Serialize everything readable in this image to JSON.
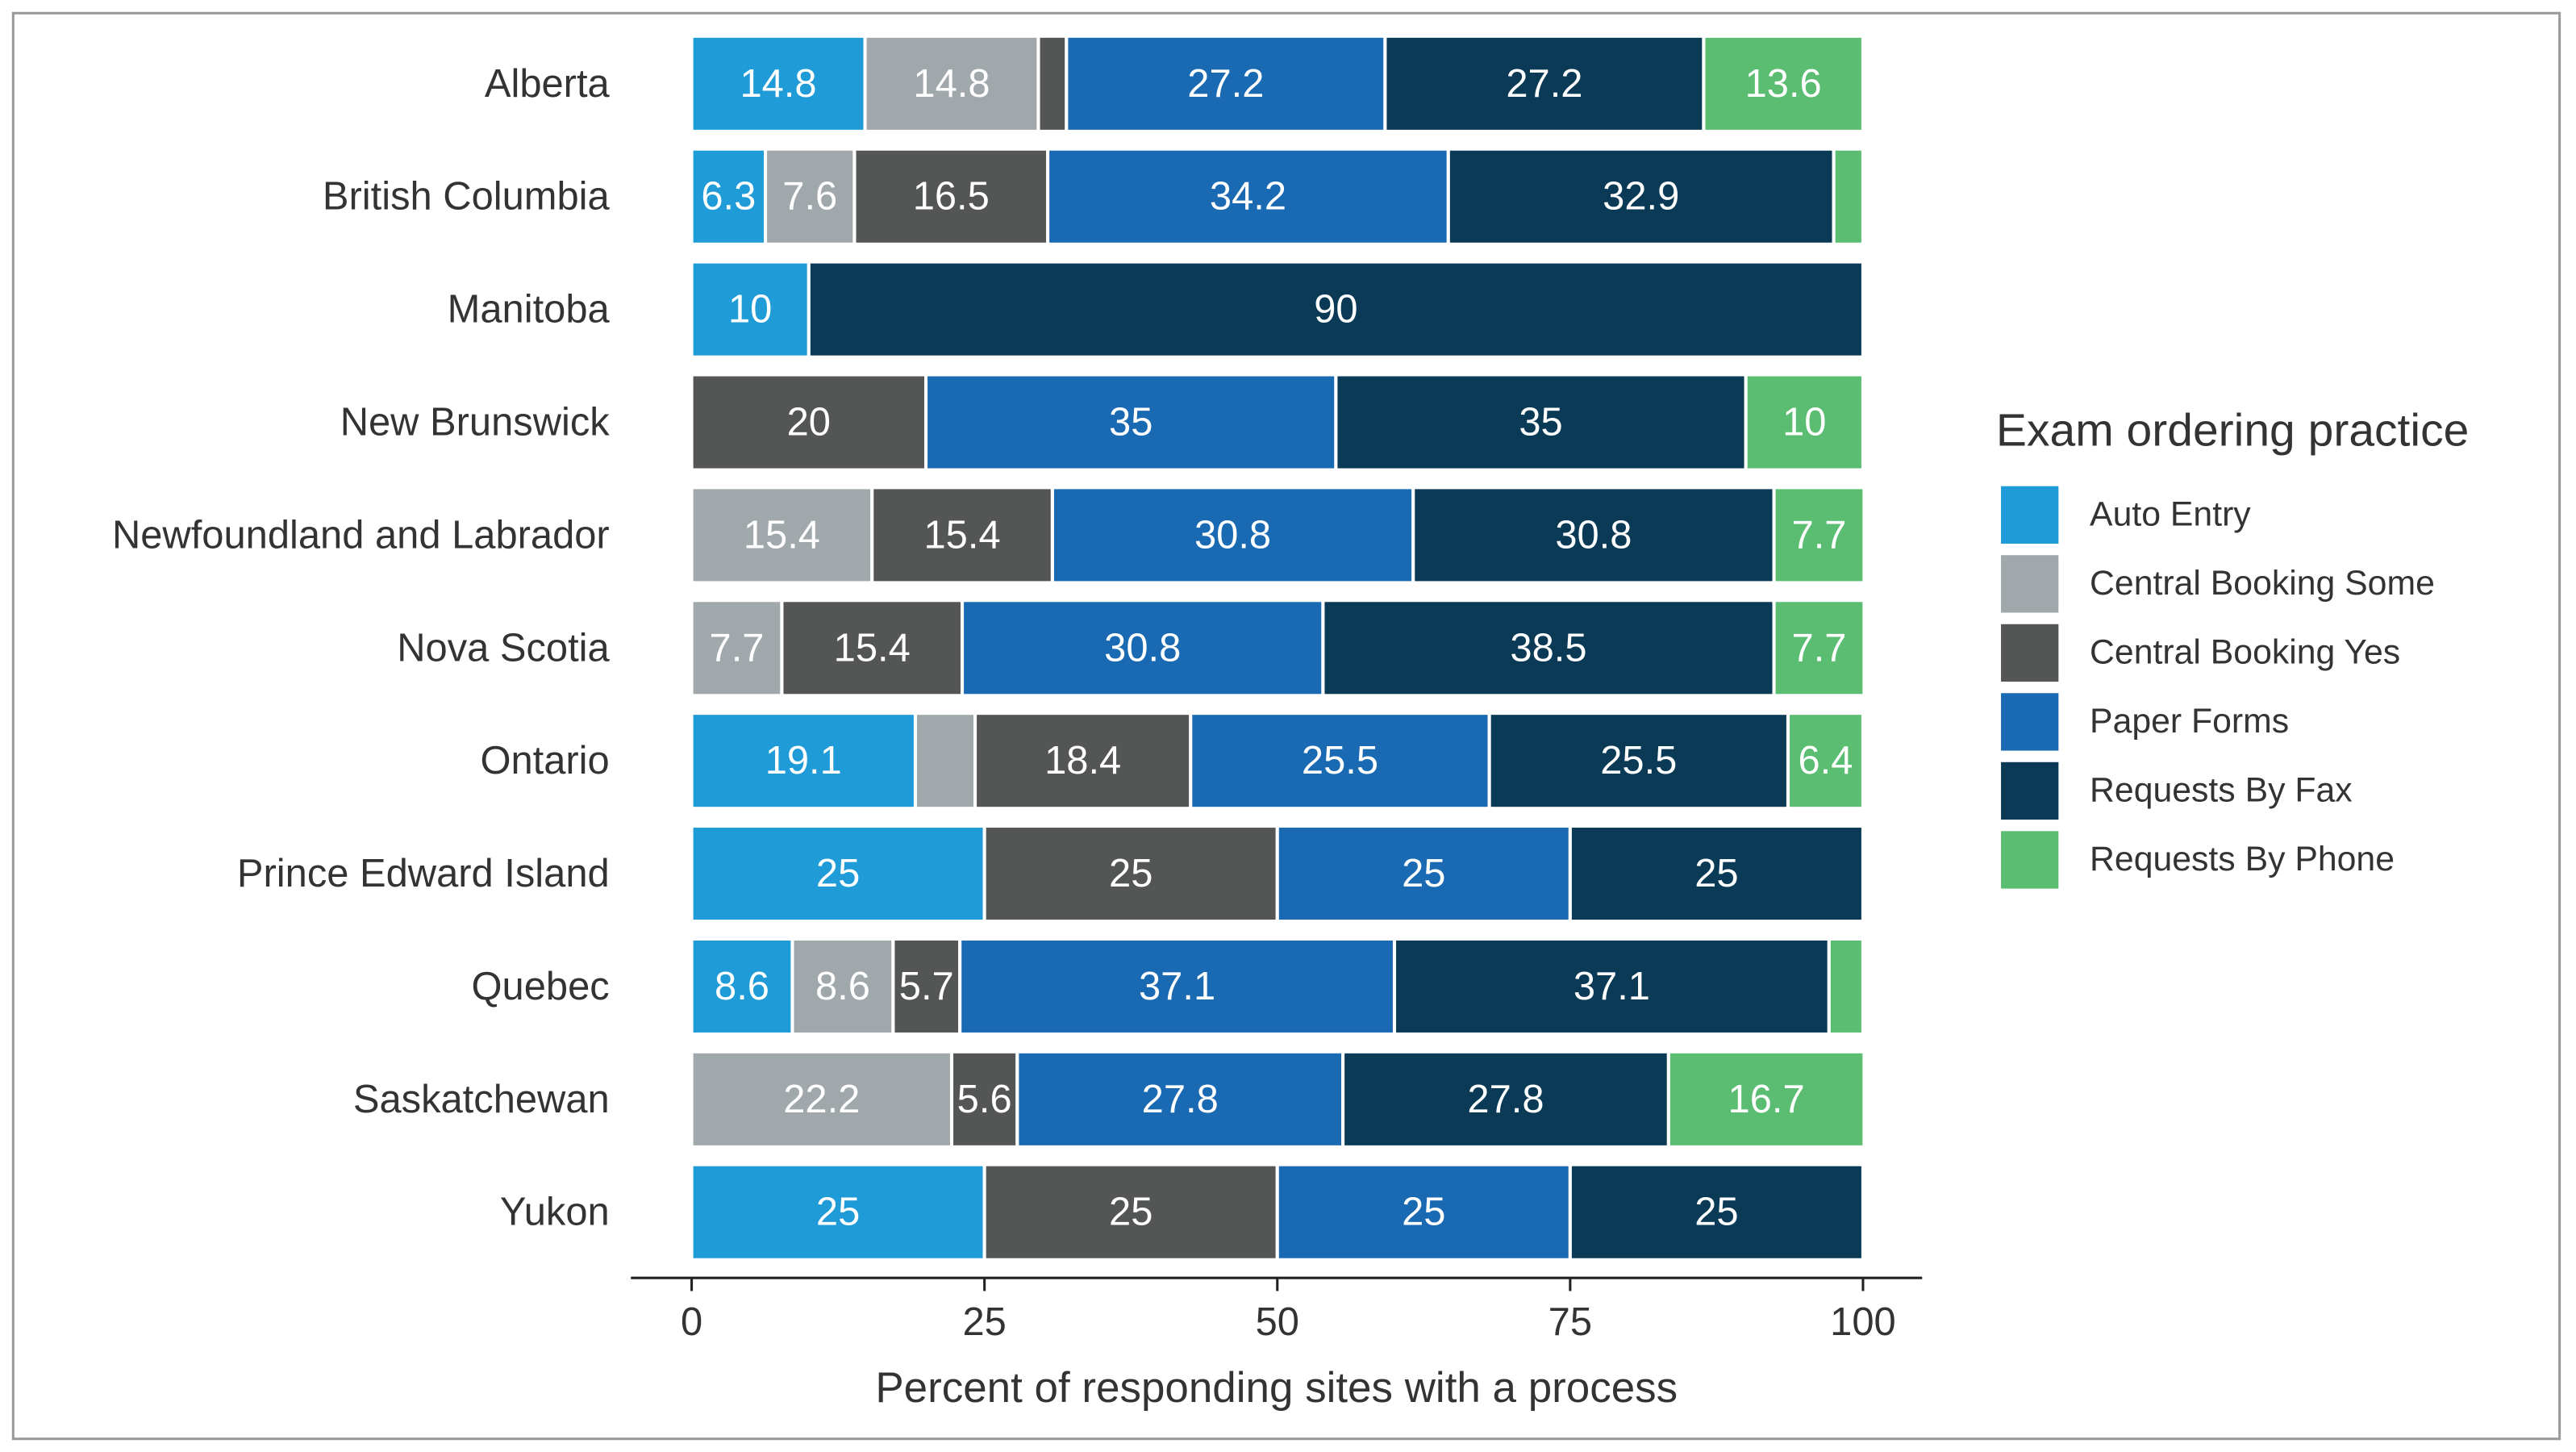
{
  "chart_data": {
    "type": "stacked_bar_horizontal",
    "categories": [
      "Alberta",
      "British Columbia",
      "Manitoba",
      "New Brunswick",
      "Newfoundland and Labrador",
      "Nova Scotia",
      "Ontario",
      "Prince Edward Island",
      "Quebec",
      "Saskatchewan",
      "Yukon"
    ],
    "series": [
      {
        "name": "Auto Entry",
        "color": "#1f9bd7",
        "values": [
          14.8,
          6.3,
          10,
          0,
          0,
          0,
          19.1,
          25,
          8.6,
          0,
          25
        ]
      },
      {
        "name": "Central Booking Some",
        "color": "#a0a8ab",
        "values": [
          14.8,
          7.6,
          0,
          0,
          15.4,
          7.7,
          5.1,
          0,
          8.6,
          22.2,
          0
        ]
      },
      {
        "name": "Central Booking Yes",
        "color": "#545656",
        "values": [
          2.4,
          16.5,
          0,
          20,
          15.4,
          15.4,
          18.4,
          25,
          5.7,
          5.6,
          25
        ]
      },
      {
        "name": "Paper Forms",
        "color": "#1a69b3",
        "values": [
          27.2,
          34.2,
          0,
          35,
          30.8,
          30.8,
          25.5,
          25,
          37.1,
          27.8,
          25
        ]
      },
      {
        "name": "Requests By Fax",
        "color": "#0a3a55",
        "values": [
          27.2,
          32.9,
          90,
          35,
          30.8,
          38.5,
          25.5,
          25,
          37.1,
          27.8,
          25
        ]
      },
      {
        "name": "Requests By Phone",
        "color": "#5bbd72",
        "values": [
          13.6,
          2.5,
          0,
          10,
          7.7,
          7.7,
          6.4,
          0,
          2.9,
          16.7,
          0
        ]
      }
    ],
    "x_label": "Percent of responding sites with a process",
    "legend_title": "Exam ordering practice",
    "xlim": [
      0,
      100
    ],
    "xticks": [
      0,
      25,
      50,
      75,
      100
    ]
  }
}
